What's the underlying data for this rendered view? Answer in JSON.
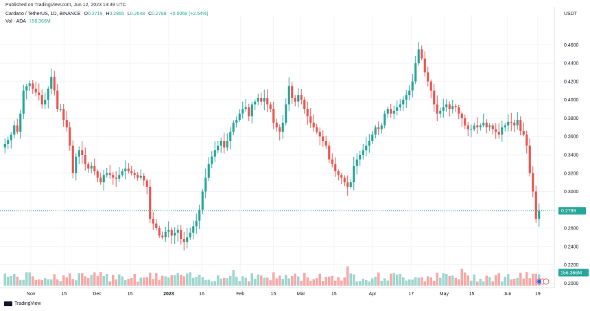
{
  "header": {
    "published": "Published on TradingView.com, Jun 12, 2023 13:39 UTC",
    "symbol": "Cardano / TetherUS, 1D, BINANCE",
    "o_label": "O",
    "o_value": "0.2719",
    "h_label": "H",
    "h_value": "0.2865",
    "l_label": "L",
    "l_value": "0.2648",
    "c_label": "C",
    "c_value": "0.2789",
    "change": "+0.0069 (+2.54%)",
    "vol_label": "Vol · ADA",
    "vol_value": "156.366M"
  },
  "footer": {
    "brand": "TradingView"
  },
  "colors": {
    "up": "#26a69a",
    "down": "#ef5350",
    "up_vol": "#9fd6cf",
    "down_vol": "#f7a9a7",
    "grid": "#f0f3fa"
  },
  "chart_data": {
    "type": "candlestick",
    "currency_label": "USDT",
    "y_ticks": [
      "0.4600",
      "0.4400",
      "0.4200",
      "0.4000",
      "0.3800",
      "0.3600",
      "0.3400",
      "0.3200",
      "0.3000",
      "0.2800",
      "0.2600",
      "0.2400",
      "0.2200",
      "0.2000"
    ],
    "ylim": [
      0.195,
      0.485
    ],
    "x_ticks": [
      "Nov",
      "15",
      "Dec",
      "15",
      "2023",
      "16",
      "Feb",
      "15",
      "Mar",
      "15",
      "Apr",
      "17",
      "May",
      "15",
      "Jun",
      "19"
    ],
    "last_price_label": "0.2789",
    "last_price": 0.2789,
    "volume_label": "156.366M",
    "closes": [
      0.352,
      0.356,
      0.362,
      0.372,
      0.365,
      0.385,
      0.41,
      0.415,
      0.418,
      0.412,
      0.408,
      0.405,
      0.395,
      0.4,
      0.412,
      0.425,
      0.41,
      0.39,
      0.39,
      0.378,
      0.37,
      0.35,
      0.32,
      0.338,
      0.345,
      0.34,
      0.33,
      0.325,
      0.328,
      0.322,
      0.315,
      0.31,
      0.318,
      0.32,
      0.318,
      0.315,
      0.314,
      0.318,
      0.322,
      0.325,
      0.322,
      0.32,
      0.318,
      0.315,
      0.317,
      0.312,
      0.305,
      0.27,
      0.265,
      0.26,
      0.252,
      0.25,
      0.256,
      0.258,
      0.252,
      0.255,
      0.258,
      0.248,
      0.245,
      0.25,
      0.255,
      0.262,
      0.268,
      0.28,
      0.3,
      0.315,
      0.33,
      0.338,
      0.345,
      0.35,
      0.355,
      0.348,
      0.355,
      0.365,
      0.375,
      0.378,
      0.385,
      0.39,
      0.392,
      0.382,
      0.395,
      0.398,
      0.402,
      0.398,
      0.402,
      0.395,
      0.39,
      0.375,
      0.37,
      0.365,
      0.375,
      0.395,
      0.415,
      0.402,
      0.398,
      0.405,
      0.4,
      0.39,
      0.382,
      0.375,
      0.37,
      0.365,
      0.36,
      0.355,
      0.35,
      0.335,
      0.33,
      0.322,
      0.318,
      0.315,
      0.31,
      0.305,
      0.31,
      0.328,
      0.335,
      0.34,
      0.345,
      0.35,
      0.355,
      0.362,
      0.37,
      0.368,
      0.372,
      0.385,
      0.39,
      0.385,
      0.388,
      0.392,
      0.395,
      0.4,
      0.405,
      0.41,
      0.42,
      0.44,
      0.455,
      0.445,
      0.43,
      0.42,
      0.41,
      0.395,
      0.385,
      0.388,
      0.392,
      0.395,
      0.39,
      0.393,
      0.392,
      0.385,
      0.38,
      0.372,
      0.368,
      0.368,
      0.372,
      0.37,
      0.372,
      0.375,
      0.37,
      0.372,
      0.368,
      0.365,
      0.362,
      0.37,
      0.372,
      0.376,
      0.375,
      0.372,
      0.378,
      0.366,
      0.362,
      0.35,
      0.32,
      0.3,
      0.27,
      0.2789
    ]
  }
}
